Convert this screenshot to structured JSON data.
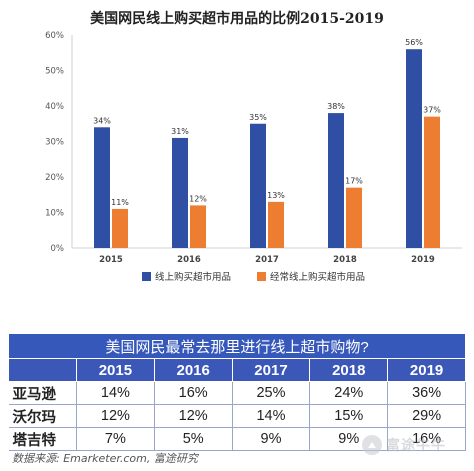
{
  "chart_data": {
    "type": "bar",
    "title": "美国网民线上购买超市用品的比例2015-2019",
    "categories": [
      "2015",
      "2016",
      "2017",
      "2018",
      "2019"
    ],
    "series": [
      {
        "name": "线上购买超市用品",
        "values": [
          34,
          31,
          35,
          38,
          56
        ],
        "color": "#2e4fa3",
        "labels": [
          "34%",
          "31%",
          "35%",
          "38%",
          "56%"
        ]
      },
      {
        "name": "经常线上购买超市用品",
        "values": [
          11,
          12,
          13,
          17,
          37
        ],
        "color": "#ed7d31",
        "labels": [
          "11%",
          "12%",
          "13%",
          "17%",
          "37%"
        ]
      }
    ],
    "ylim": [
      0,
      60
    ],
    "yticks": [
      0,
      10,
      20,
      30,
      40,
      50,
      60
    ],
    "ytick_labels": [
      "0%",
      "10%",
      "20%",
      "30%",
      "40%",
      "50%",
      "60%"
    ],
    "grid": false,
    "legend": "bottom"
  },
  "table": {
    "title": "美国网民最常去那里进行线上超市购物?",
    "columns": [
      "",
      "2015",
      "2016",
      "2017",
      "2018",
      "2019"
    ],
    "rows": [
      {
        "label": "亚马逊",
        "values": [
          "14%",
          "16%",
          "25%",
          "24%",
          "36%"
        ]
      },
      {
        "label": "沃尔玛",
        "values": [
          "12%",
          "12%",
          "14%",
          "15%",
          "29%"
        ]
      },
      {
        "label": "塔吉特",
        "values": [
          "7%",
          "5%",
          "9%",
          "9%",
          "16%"
        ]
      }
    ]
  },
  "source": "数据来源: Emarketer.com, 富途研究",
  "watermark": "富途牛牛"
}
